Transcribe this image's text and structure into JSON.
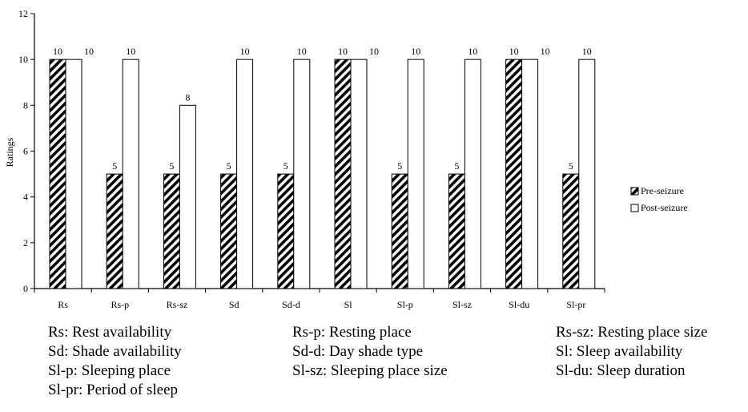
{
  "chart_data": {
    "type": "bar",
    "title": "",
    "xlabel": "",
    "ylabel": "Ratings",
    "ylim": [
      0,
      12
    ],
    "yticks": [
      0,
      2,
      4,
      6,
      8,
      10,
      12
    ],
    "grid": false,
    "legend_position": "right",
    "categories": [
      "Rs",
      "Rs-p",
      "Rs-sz",
      "Sd",
      "Sd-d",
      "Sl",
      "Sl-p",
      "Sl-sz",
      "Sl-du",
      "Sl-pr"
    ],
    "series": [
      {
        "name": "Pre-seizure",
        "values": [
          10,
          5,
          5,
          5,
          5,
          10,
          5,
          5,
          10,
          5
        ],
        "fill": "hatched"
      },
      {
        "name": "Post-seizure",
        "values": [
          10,
          10,
          8,
          10,
          10,
          10,
          10,
          10,
          10,
          10
        ],
        "fill": "white"
      }
    ]
  },
  "abbreviations": [
    "Rs: Rest availability",
    "Rs-p: Resting place",
    "Rs-sz: Resting place size",
    "Sd: Shade availability",
    "Sd-d: Day shade type",
    "Sl: Sleep availability",
    "Sl-p: Sleeping place",
    "Sl-sz: Sleeping place size",
    "Sl-du: Sleep duration",
    "Sl-pr: Period of sleep"
  ],
  "colors": {
    "axis": "#000000",
    "bar_outline": "#000000",
    "hatch": "#000000",
    "background": "#ffffff"
  }
}
